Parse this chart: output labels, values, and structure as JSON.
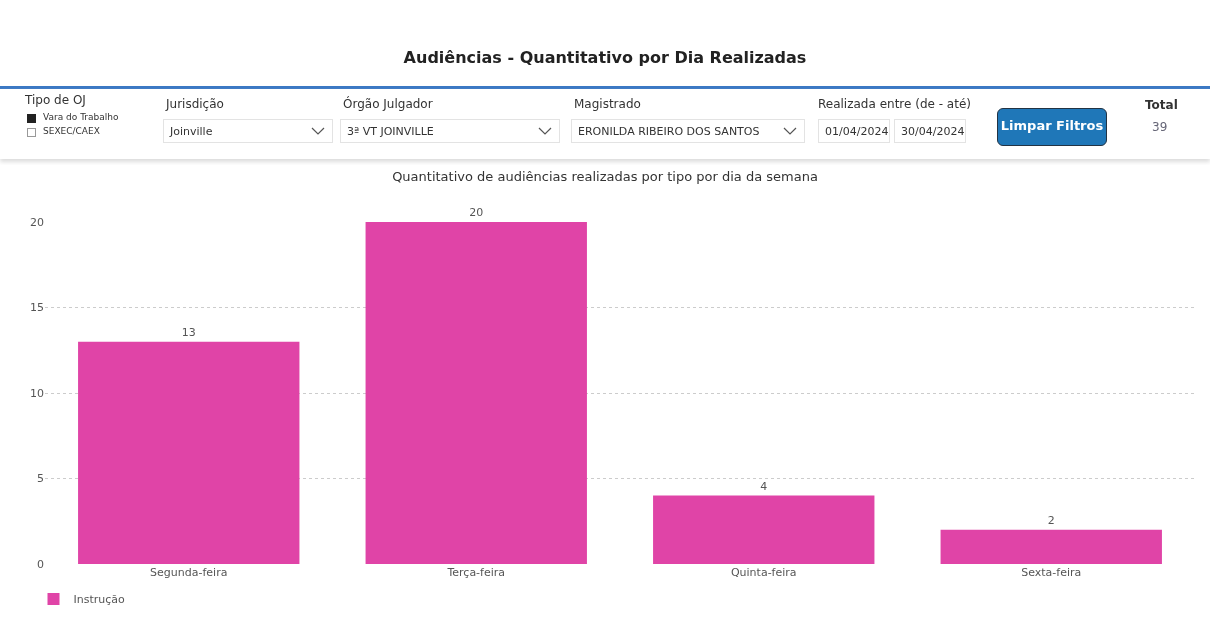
{
  "chart_data": [
    {
      "type": "other",
      "title": "Audiências - Quantitativo por Dia Realizadas",
      "annotations": [
        "Tipo de OJ",
        "Vara do Trabalho",
        "SEXEC/CAEX",
        "Jurisdição",
        "Joinville",
        "Órgão Julgador",
        "3ª VT JOINVILLE",
        "Magistrado",
        "ERONILDA RIBEIRO DOS SANTOS",
        "Realizada entre (de - até)",
        "01/04/2024",
        "30/04/2024",
        "Limpar Filtros",
        "Total",
        "39"
      ]
    },
    {
      "type": "bar",
      "title": "Quantitativo de audiências realizadas por tipo por dia da semana",
      "categories": [
        "Segunda-feira",
        "Terça-feira",
        "Quinta-feira",
        "Sexta-feira"
      ],
      "series": [
        {
          "name": "Instrução",
          "color": "#e044a7",
          "values": [
            13,
            20,
            4,
            2
          ]
        }
      ],
      "ylim": [
        0,
        20
      ],
      "yticks": [
        0,
        5,
        10,
        15,
        20
      ],
      "grid": "y",
      "legend": "bottom left",
      "data_labels": true
    }
  ]
}
